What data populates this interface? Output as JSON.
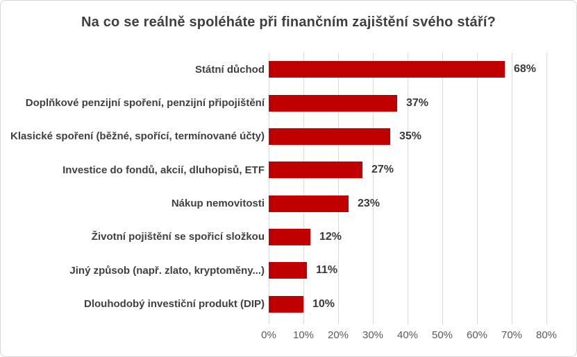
{
  "chart_data": {
    "type": "bar",
    "orientation": "horizontal",
    "title": "Na co se reálně spoléháte při finančním zajištění svého stáří?",
    "categories": [
      "Státní důchod",
      "Doplňkové penzijní spoření, penzijní připojištění",
      "Klasické spoření (běžné, spořící, termínované účty)",
      "Investice do fondů, akcií, dluhopisů, ETF",
      "Nákup nemovitosti",
      "Životní pojištění se spořicí složkou",
      "Jiný způsob (např. zlato, kryptoměny...)",
      "Dlouhodobý investiční produkt (DIP)"
    ],
    "values": [
      68,
      37,
      35,
      27,
      23,
      12,
      11,
      10
    ],
    "value_labels": [
      "68%",
      "37%",
      "35%",
      "27%",
      "23%",
      "12%",
      "11%",
      "10%"
    ],
    "x_tick_labels": [
      "0%",
      "10%",
      "20%",
      "30%",
      "40%",
      "50%",
      "60%",
      "70%",
      "80%"
    ],
    "xlim": [
      0,
      80
    ],
    "grid": "vertical-only",
    "legend": "none",
    "colors": {
      "bar": "#c00000",
      "title_text": "#3f3f3f",
      "category_text": "#3f3f3f",
      "value_text": "#3a3a3a",
      "axis_text": "#595959",
      "gridline": "#d9d9d9",
      "background": "#ffffff",
      "frame_border": "#d6d6d6"
    }
  }
}
